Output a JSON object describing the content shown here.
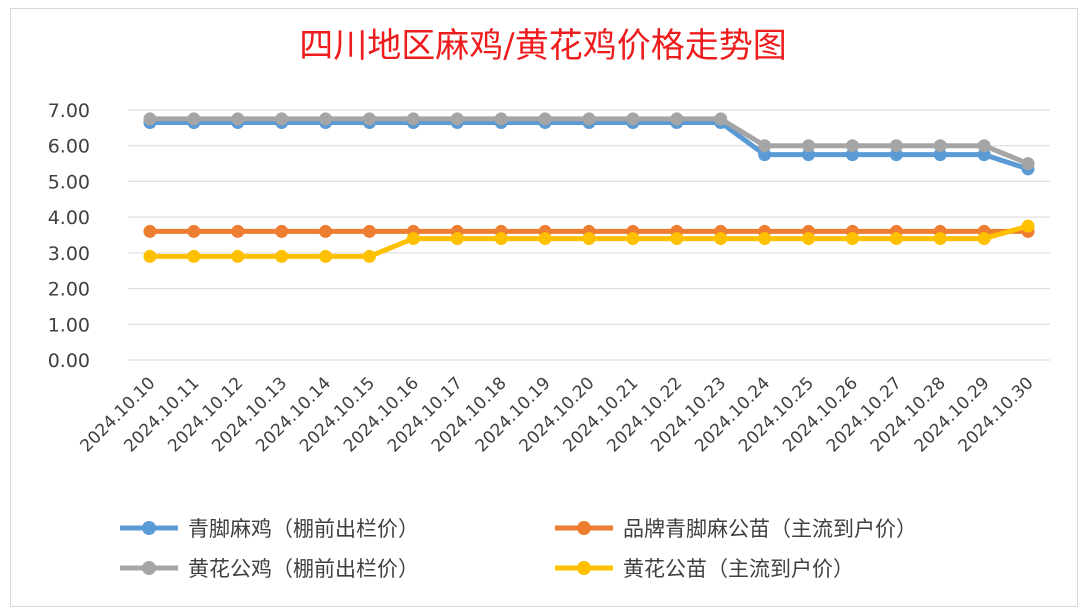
{
  "chart_data": {
    "type": "line",
    "title": "四川地区麻鸡/黄花鸡价格走势图",
    "xlabel": "",
    "ylabel": "",
    "ylim": [
      0,
      7
    ],
    "yticks": [
      "0.00",
      "1.00",
      "2.00",
      "3.00",
      "4.00",
      "5.00",
      "6.00",
      "7.00"
    ],
    "grid": true,
    "legend_position": "bottom",
    "categories": [
      "2024.10.10",
      "2024.10.11",
      "2024.10.12",
      "2024.10.13",
      "2024.10.14",
      "2024.10.15",
      "2024.10.16",
      "2024.10.17",
      "2024.10.18",
      "2024.10.19",
      "2024.10.20",
      "2024.10.21",
      "2024.10.22",
      "2024.10.23",
      "2024.10.24",
      "2024.10.25",
      "2024.10.26",
      "2024.10.27",
      "2024.10.28",
      "2024.10.29",
      "2024.10.30"
    ],
    "series": [
      {
        "name": "青脚麻鸡（棚前出栏价）",
        "color": "#5b9bd5",
        "values": [
          6.65,
          6.65,
          6.65,
          6.65,
          6.65,
          6.65,
          6.65,
          6.65,
          6.65,
          6.65,
          6.65,
          6.65,
          6.65,
          6.65,
          5.75,
          5.75,
          5.75,
          5.75,
          5.75,
          5.75,
          5.35
        ]
      },
      {
        "name": "品牌青脚麻公苗（主流到户价）",
        "color": "#ed7d31",
        "values": [
          3.6,
          3.6,
          3.6,
          3.6,
          3.6,
          3.6,
          3.6,
          3.6,
          3.6,
          3.6,
          3.6,
          3.6,
          3.6,
          3.6,
          3.6,
          3.6,
          3.6,
          3.6,
          3.6,
          3.6,
          3.6
        ]
      },
      {
        "name": "黄花公鸡（棚前出栏价）",
        "color": "#a5a5a5",
        "values": [
          6.75,
          6.75,
          6.75,
          6.75,
          6.75,
          6.75,
          6.75,
          6.75,
          6.75,
          6.75,
          6.75,
          6.75,
          6.75,
          6.75,
          6.0,
          6.0,
          6.0,
          6.0,
          6.0,
          6.0,
          5.5
        ]
      },
      {
        "name": "黄花公苗（主流到户价）",
        "color": "#ffc000",
        "values": [
          2.9,
          2.9,
          2.9,
          2.9,
          2.9,
          2.9,
          3.4,
          3.4,
          3.4,
          3.4,
          3.4,
          3.4,
          3.4,
          3.4,
          3.4,
          3.4,
          3.4,
          3.4,
          3.4,
          3.4,
          3.75
        ]
      }
    ]
  }
}
